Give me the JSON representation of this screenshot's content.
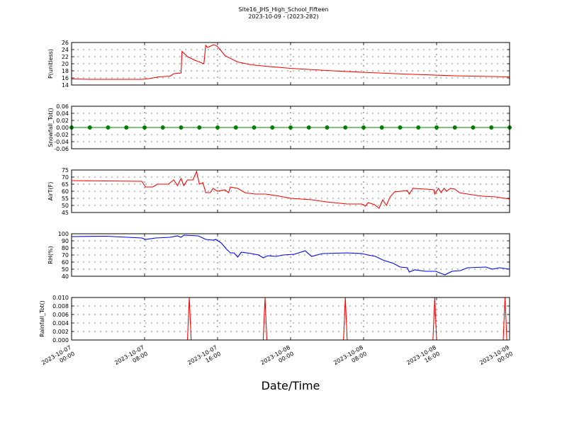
{
  "title": "Site16_JHS_High_School_Fifteen",
  "subtitle": "2023-10-09 - (2023-282)",
  "xlabel": "Date/Time",
  "xlim": [
    0,
    48
  ],
  "xticks": [
    {
      "value": 0,
      "label": [
        "2023-10-07",
        "00:00"
      ]
    },
    {
      "value": 8,
      "label": [
        "2023-10-07",
        "08:00"
      ]
    },
    {
      "value": 16,
      "label": [
        "2023-10-07",
        "16:00"
      ]
    },
    {
      "value": 24,
      "label": [
        "2023-10-08",
        "00:00"
      ]
    },
    {
      "value": 32,
      "label": [
        "2023-10-08",
        "08:00"
      ]
    },
    {
      "value": 40,
      "label": [
        "2023-10-08",
        "16:00"
      ]
    },
    {
      "value": 48,
      "label": [
        "2023-10-09",
        "00:00"
      ]
    }
  ],
  "chart_data": [
    {
      "type": "line",
      "ylabel": "P(unitless)",
      "ylim": [
        14,
        26
      ],
      "yticks": [
        14,
        16,
        18,
        20,
        22,
        24,
        26
      ],
      "grid": true,
      "x": [
        0,
        2,
        4,
        6,
        7.7,
        8.5,
        9.6,
        10.8,
        11.2,
        12,
        12.1,
        12.7,
        13.5,
        14.5,
        14.7,
        14.9,
        15.5,
        15.8,
        16.2,
        16.8,
        18.2,
        19.7,
        21.7,
        24,
        27.9,
        31.8,
        36.4,
        41.9,
        48
      ],
      "series": [
        {
          "color": "#ff0000",
          "values": [
            15.7,
            15.6,
            15.6,
            15.6,
            15.6,
            15.8,
            16.3,
            16.5,
            17.2,
            17.4,
            23.5,
            22,
            21,
            20,
            25.2,
            24.6,
            25.3,
            25.2,
            24.3,
            22.3,
            20.5,
            19.7,
            19.2,
            18.7,
            18.1,
            17.6,
            17.1,
            16.6,
            16.3
          ]
        }
      ]
    },
    {
      "type": "line",
      "ylabel": "Snowfall_Tot()",
      "ylim": [
        -0.06,
        0.06
      ],
      "yticks": [
        {
          "value": -0.06,
          "label": "-0.06"
        },
        {
          "value": -0.04,
          "label": "-0.04"
        },
        {
          "value": -0.02,
          "label": "-0.02"
        },
        {
          "value": 0,
          "label": "0.00"
        },
        {
          "value": 0.02,
          "label": "0.02"
        },
        {
          "value": 0.04,
          "label": "0.04"
        },
        {
          "value": 0.06,
          "label": "0.06"
        }
      ],
      "grid": true,
      "marker": "o",
      "x": [
        0,
        2,
        4,
        6,
        8,
        10,
        12,
        14,
        16,
        18,
        20,
        22,
        24,
        26,
        28,
        30,
        32,
        34,
        36,
        38,
        40,
        42,
        44,
        46,
        48
      ],
      "series": [
        {
          "color": "#008000",
          "values": [
            0,
            0,
            0,
            0,
            0,
            0,
            0,
            0,
            0,
            0,
            0,
            0,
            0,
            0,
            0,
            0,
            0,
            0,
            0,
            0,
            0,
            0,
            0,
            0,
            0
          ]
        }
      ]
    },
    {
      "type": "line",
      "ylabel": "AirT(F)",
      "ylim": [
        45,
        75
      ],
      "yticks": [
        45,
        50,
        55,
        60,
        65,
        70,
        75
      ],
      "grid": true,
      "x": [
        0,
        7.7,
        8.1,
        8.9,
        9.4,
        10.6,
        11.2,
        11.6,
        12,
        12.3,
        12.7,
        13.3,
        13.7,
        14,
        14.4,
        14.7,
        15.2,
        15.5,
        16,
        16.8,
        17.2,
        17.4,
        18.2,
        19,
        20.1,
        21.3,
        22.8,
        24,
        26.3,
        27.9,
        30.2,
        31.8,
        32.2,
        32.5,
        33.2,
        33.7,
        34.1,
        34.5,
        34.9,
        35.4,
        36.8,
        37,
        37.4,
        38.8,
        39.7,
        39.8,
        40.2,
        40.5,
        40.8,
        41.1,
        41.5,
        42,
        42.5,
        43.4,
        45,
        46.5,
        48
      ],
      "series": [
        {
          "color": "#ff0000",
          "values": [
            67.5,
            67,
            63,
            63,
            65,
            65,
            68,
            64,
            69,
            64,
            68,
            68,
            74,
            65,
            66,
            59,
            59,
            62,
            60,
            61,
            59,
            63,
            62,
            59,
            58,
            58,
            56.5,
            55,
            54,
            52.5,
            51,
            51,
            49.5,
            52,
            50.5,
            48,
            54,
            50,
            56,
            59.5,
            60.5,
            58,
            62,
            61.5,
            61,
            58,
            62,
            59,
            62,
            60,
            62,
            61.5,
            59,
            58,
            56.5,
            56,
            54.5
          ]
        }
      ]
    },
    {
      "type": "line",
      "ylabel": "RH(%)",
      "ylim": [
        40,
        100
      ],
      "yticks": [
        40,
        50,
        60,
        70,
        80,
        90,
        100
      ],
      "grid": true,
      "x": [
        0,
        3.8,
        7.7,
        8.1,
        9.2,
        10.8,
        11.6,
        12,
        12.3,
        13.9,
        14.7,
        15.5,
        15.8,
        16.4,
        17,
        17.4,
        17.8,
        18.2,
        18.6,
        19.7,
        20.5,
        21,
        21.5,
        22.4,
        23.2,
        24.4,
        25.6,
        26.3,
        27.5,
        30.2,
        31.8,
        32.5,
        33.3,
        34.1,
        35.3,
        36,
        36.8,
        37,
        37.6,
        38.8,
        39.9,
        40.3,
        40.9,
        41.7,
        42.6,
        43.4,
        45.4,
        46.1,
        46.9,
        48
      ],
      "series": [
        {
          "color": "#0000ff",
          "values": [
            96,
            96.5,
            94,
            92,
            94,
            95,
            97,
            95,
            98,
            97,
            92,
            91,
            92,
            87,
            78,
            73,
            73,
            67,
            74,
            72,
            70,
            66,
            69,
            68,
            70,
            71,
            76,
            68,
            72,
            73,
            72,
            70,
            68,
            63,
            58,
            53,
            52,
            46,
            49,
            47,
            47,
            45,
            42,
            47,
            48,
            52,
            53,
            50,
            52,
            50
          ]
        }
      ]
    },
    {
      "type": "line",
      "ylabel": "Rainfall_Tot()",
      "ylim": [
        0,
        0.01
      ],
      "yticks": [
        {
          "value": 0,
          "label": "0.000"
        },
        {
          "value": 0.002,
          "label": "0.002"
        },
        {
          "value": 0.004,
          "label": "0.004"
        },
        {
          "value": 0.006,
          "label": "0.006"
        },
        {
          "value": 0.008,
          "label": "0.008"
        },
        {
          "value": 0.01,
          "label": "0.010"
        }
      ],
      "grid": true,
      "x": [
        0,
        12.7,
        12.9,
        13.1,
        21,
        21.2,
        21.4,
        29.8,
        30,
        30.2,
        39.6,
        39.8,
        40,
        47.3,
        47.5,
        47.7,
        48
      ],
      "series": [
        {
          "color": "#ff0000",
          "values": [
            0,
            0,
            0.01,
            0,
            0,
            0.01,
            0,
            0,
            0.01,
            0,
            0,
            0.01,
            0,
            0,
            0.01,
            0,
            0
          ]
        }
      ]
    }
  ]
}
